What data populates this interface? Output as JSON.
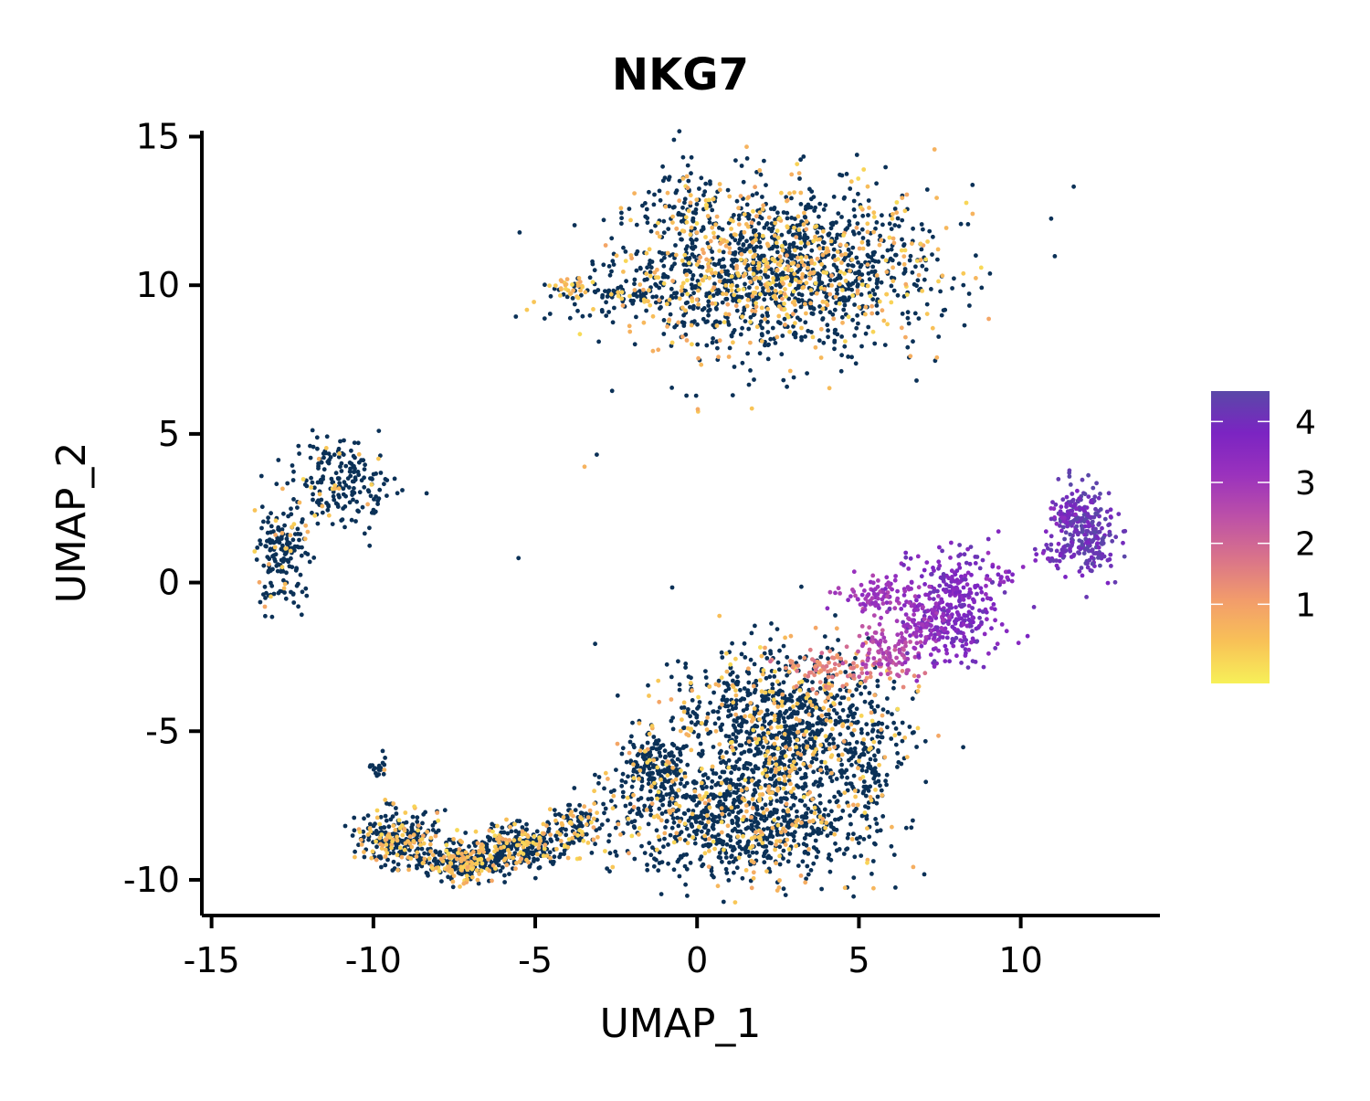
{
  "chart_data": {
    "type": "scatter",
    "title": "NKG7",
    "xlabel": "UMAP_1",
    "ylabel": "UMAP_2",
    "xlim": [
      -15.3,
      14.3
    ],
    "ylim": [
      -11.2,
      15.2
    ],
    "x_ticks": [
      -15,
      -10,
      -5,
      0,
      5,
      10
    ],
    "x_tick_labels": [
      "-15",
      "-10",
      "-5",
      "0",
      "5",
      "10"
    ],
    "y_ticks": [
      -10,
      -5,
      0,
      5,
      10,
      15
    ],
    "y_tick_labels": [
      "-10",
      "-5",
      "0",
      "5",
      "10",
      "15"
    ],
    "grid": false,
    "colorbar": {
      "placement": "right",
      "range": [
        -0.3,
        4.5
      ],
      "ticks": [
        1,
        2,
        3,
        4
      ],
      "tick_labels": [
        "1",
        "2",
        "3",
        "4"
      ],
      "colors": [
        "#f7f058",
        "#f8c157",
        "#f29c6b",
        "#d9738a",
        "#bc50a8",
        "#9a32bd",
        "#7b24c2",
        "#5a48a8"
      ]
    },
    "low_expression_color": "#0b3157",
    "clusters": [
      {
        "cx": 2.5,
        "cy": 10.5,
        "sx": 2.4,
        "sy": 1.4,
        "n": 1600,
        "expr": 0.35,
        "highFrac": 0.3
      },
      {
        "cx": -0.3,
        "cy": 12.8,
        "sx": 0.4,
        "sy": 0.6,
        "n": 60,
        "expr": 0.3,
        "highFrac": 0.25
      },
      {
        "cx": -4.0,
        "cy": 9.9,
        "sx": 0.35,
        "sy": 0.25,
        "n": 40,
        "expr": 0.8,
        "highFrac": 0.6
      },
      {
        "cx": -2.2,
        "cy": 9.6,
        "sx": 0.9,
        "sy": 0.25,
        "n": 70,
        "expr": 0.3,
        "highFrac": 0.3
      },
      {
        "cx": -11.0,
        "cy": 3.4,
        "sx": 0.8,
        "sy": 0.7,
        "n": 200,
        "expr": 0.2,
        "highFrac": 0.1
      },
      {
        "cx": -12.8,
        "cy": 1.0,
        "sx": 0.4,
        "sy": 0.9,
        "n": 170,
        "expr": 0.2,
        "highFrac": 0.1
      },
      {
        "cx": -9.9,
        "cy": -6.2,
        "sx": 0.15,
        "sy": 0.2,
        "n": 20,
        "expr": 0.1,
        "highFrac": 0.05
      },
      {
        "cx": -9.2,
        "cy": -8.6,
        "sx": 0.6,
        "sy": 0.45,
        "n": 260,
        "expr": 0.4,
        "highFrac": 0.35
      },
      {
        "cx": -7.2,
        "cy": -9.4,
        "sx": 0.8,
        "sy": 0.3,
        "n": 300,
        "expr": 0.45,
        "highFrac": 0.35
      },
      {
        "cx": -5.3,
        "cy": -8.8,
        "sx": 0.7,
        "sy": 0.35,
        "n": 250,
        "expr": 0.45,
        "highFrac": 0.35
      },
      {
        "cx": -3.8,
        "cy": -8.1,
        "sx": 0.45,
        "sy": 0.3,
        "n": 90,
        "expr": 0.4,
        "highFrac": 0.3
      },
      {
        "cx": 2.6,
        "cy": -4.8,
        "sx": 1.7,
        "sy": 1.3,
        "n": 1000,
        "expr": 0.3,
        "highFrac": 0.2
      },
      {
        "cx": 1.5,
        "cy": -8.0,
        "sx": 2.0,
        "sy": 1.0,
        "n": 900,
        "expr": 0.3,
        "highFrac": 0.2
      },
      {
        "cx": -1.4,
        "cy": -6.4,
        "sx": 0.5,
        "sy": 0.7,
        "n": 200,
        "expr": 0.2,
        "highFrac": 0.1
      },
      {
        "cx": 5.3,
        "cy": -6.0,
        "sx": 0.35,
        "sy": 1.4,
        "n": 90,
        "expr": 0.2,
        "highFrac": 0.1
      },
      {
        "cx": 4.2,
        "cy": -2.9,
        "sx": 1.0,
        "sy": 0.35,
        "n": 90,
        "expr": 1.5,
        "highFrac": 0
      },
      {
        "cx": 5.8,
        "cy": -2.3,
        "sx": 0.6,
        "sy": 0.5,
        "n": 100,
        "expr": 2.6,
        "highFrac": 0
      },
      {
        "cx": 5.7,
        "cy": -0.4,
        "sx": 0.6,
        "sy": 0.35,
        "n": 90,
        "expr": 3.1,
        "highFrac": 0
      },
      {
        "cx": 7.9,
        "cy": -0.9,
        "sx": 0.7,
        "sy": 0.9,
        "n": 330,
        "expr": 3.8,
        "highFrac": 0
      },
      {
        "cx": 7.0,
        "cy": -1.3,
        "sx": 0.45,
        "sy": 0.45,
        "n": 80,
        "expr": 3.2,
        "highFrac": 0
      },
      {
        "cx": 9.4,
        "cy": 0.2,
        "sx": 0.4,
        "sy": 0.25,
        "n": 20,
        "expr": 3.5,
        "highFrac": 0
      },
      {
        "cx": 12.0,
        "cy": 1.8,
        "sx": 0.45,
        "sy": 0.8,
        "n": 260,
        "expr": 4.2,
        "highFrac": 0
      },
      {
        "cx": 11.3,
        "cy": 2.3,
        "sx": 0.25,
        "sy": 0.2,
        "n": 25,
        "expr": 3.8,
        "highFrac": 0
      },
      {
        "cx": 11.0,
        "cy": 1.0,
        "sx": 0.3,
        "sy": 0.25,
        "n": 30,
        "expr": 3.9,
        "highFrac": 0
      },
      {
        "cx": -5.5,
        "cy": 0.8,
        "sx": 0.02,
        "sy": 0.02,
        "n": 1,
        "expr": 0,
        "highFrac": 0
      },
      {
        "cx": -3.5,
        "cy": 3.9,
        "sx": 0.02,
        "sy": 0.02,
        "n": 1,
        "expr": 0.3,
        "highFrac": 1
      },
      {
        "cx": -3.1,
        "cy": 4.3,
        "sx": 0.02,
        "sy": 0.02,
        "n": 1,
        "expr": 0,
        "highFrac": 0
      }
    ]
  }
}
